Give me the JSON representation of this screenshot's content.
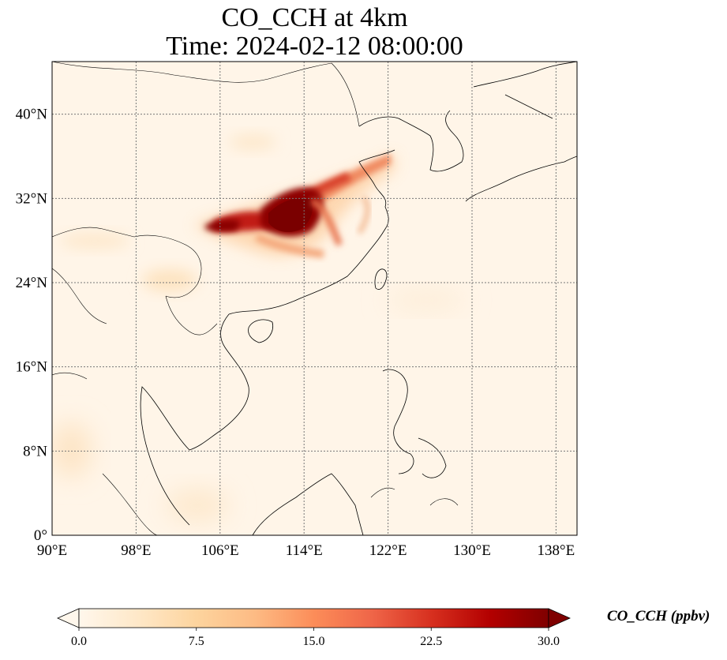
{
  "title": {
    "line1": "CO_CCH at 4km",
    "line2": "Time: 2024-02-12 08:00:00"
  },
  "map": {
    "projection": "PlateCarree",
    "lon_range": [
      90,
      140
    ],
    "lat_range": [
      0,
      45
    ],
    "lon_ticks": [
      {
        "value": 90,
        "label": "90°E"
      },
      {
        "value": 98,
        "label": "98°E"
      },
      {
        "value": 106,
        "label": "106°E"
      },
      {
        "value": 114,
        "label": "114°E"
      },
      {
        "value": 122,
        "label": "122°E"
      },
      {
        "value": 130,
        "label": "130°E"
      },
      {
        "value": 138,
        "label": "138°E"
      }
    ],
    "lat_ticks": [
      {
        "value": 0,
        "label": "0°"
      },
      {
        "value": 8,
        "label": "8°N"
      },
      {
        "value": 16,
        "label": "16°N"
      },
      {
        "value": 24,
        "label": "24°N"
      },
      {
        "value": 32,
        "label": "32°N"
      },
      {
        "value": 40,
        "label": "40°N"
      }
    ],
    "gridlines": true,
    "background_color": "#fff5e8"
  },
  "colorbar": {
    "label": "CO_CCH (ppbv)",
    "cmap": "OrRd",
    "range": [
      0,
      30
    ],
    "extend": "both",
    "orientation": "horizontal",
    "ticks": [
      {
        "value": 0,
        "label": "0.0"
      },
      {
        "value": 7.5,
        "label": "7.5"
      },
      {
        "value": 15,
        "label": "15.0"
      },
      {
        "value": 22.5,
        "label": "22.5"
      },
      {
        "value": 30,
        "label": "30.0"
      }
    ]
  },
  "plume": {
    "description_values_ppbv": [
      {
        "lon": 112.5,
        "lat": 30.0,
        "value": 30
      },
      {
        "lon": 107.5,
        "lat": 30.0,
        "value": 27
      },
      {
        "lon": 117.0,
        "lat": 32.5,
        "value": 24
      },
      {
        "lon": 120.5,
        "lat": 35.5,
        "value": 18
      },
      {
        "lon": 115.5,
        "lat": 29.0,
        "value": 14
      },
      {
        "lon": 103.0,
        "lat": 24.5,
        "value": 4
      },
      {
        "lon": 108.0,
        "lat": 36.5,
        "value": 3
      }
    ]
  }
}
